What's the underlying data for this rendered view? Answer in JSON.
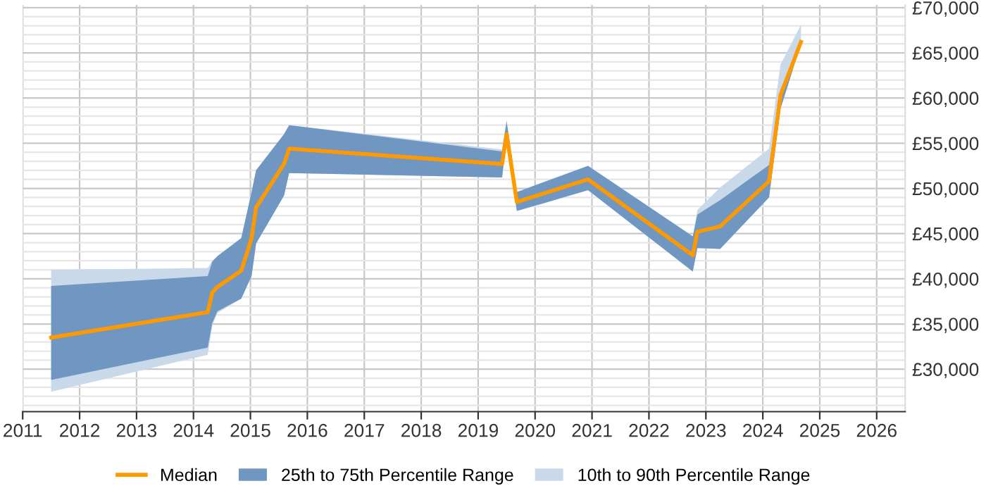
{
  "chart_data": {
    "type": "line",
    "x": [
      2011.5,
      2014.25,
      2014.33,
      2014.42,
      2014.84,
      2015.02,
      2015.1,
      2015.59,
      2015.68,
      2019.42,
      2019.5,
      2019.68,
      2020.93,
      2022.77,
      2022.85,
      2023.25,
      2024.11,
      2024.31,
      2024.67
    ],
    "series": [
      {
        "name": "10th to 90th Percentile Range",
        "type": "area",
        "color": "#c9d9ea",
        "values": [
          null,
          null,
          null,
          null,
          null,
          null,
          null,
          null,
          null,
          null,
          null,
          null,
          null,
          null,
          null,
          null,
          null,
          null,
          null
        ],
        "lower": [
          27500,
          31600,
          34800,
          36200,
          37800,
          40300,
          43900,
          49200,
          51700,
          51200,
          55400,
          47500,
          49800,
          40800,
          43400,
          43300,
          49000,
          58800,
          66000
        ],
        "upper": [
          41000,
          41200,
          42000,
          42500,
          44500,
          49600,
          52000,
          56000,
          57000,
          54300,
          57600,
          49600,
          52500,
          44700,
          47600,
          50100,
          54400,
          63700,
          68100
        ]
      },
      {
        "name": "25th to 75th Percentile Range",
        "type": "area",
        "color": "#7097c1",
        "values": [
          null,
          null,
          null,
          null,
          null,
          null,
          null,
          null,
          null,
          null,
          null,
          null,
          null,
          null,
          null,
          null,
          null,
          null,
          null
        ],
        "lower": [
          28800,
          32400,
          35100,
          36400,
          37800,
          40300,
          43900,
          49200,
          51700,
          51200,
          55400,
          47500,
          49800,
          40800,
          43400,
          43300,
          49000,
          58800,
          66000
        ],
        "upper": [
          39200,
          40300,
          41900,
          42500,
          44500,
          49600,
          52000,
          56000,
          57000,
          54100,
          57400,
          49600,
          52500,
          44700,
          47100,
          48700,
          52600,
          60900,
          66300
        ]
      },
      {
        "name": "Median",
        "color": "#ff9900",
        "values": [
          33500,
          36300,
          38500,
          39100,
          40900,
          44500,
          47900,
          52700,
          54400,
          52700,
          56000,
          48500,
          51000,
          42600,
          45200,
          45800,
          50800,
          60300,
          66200
        ]
      }
    ],
    "xlim": [
      2011,
      2026.5
    ],
    "xticks": [
      2011,
      2012,
      2013,
      2014,
      2015,
      2016,
      2017,
      2018,
      2019,
      2020,
      2021,
      2022,
      2023,
      2024,
      2025,
      2026
    ],
    "ylim": [
      25300,
      70300
    ],
    "yticks": [
      {
        "value": 26000,
        "label": null
      },
      {
        "value": 27000,
        "label": null
      },
      {
        "value": 28000,
        "label": null
      },
      {
        "value": 29000,
        "label": null
      },
      {
        "value": 30000,
        "label": "£30,000"
      },
      {
        "value": 31000,
        "label": null
      },
      {
        "value": 32000,
        "label": null
      },
      {
        "value": 33000,
        "label": null
      },
      {
        "value": 34000,
        "label": null
      },
      {
        "value": 35000,
        "label": "£35,000"
      },
      {
        "value": 36000,
        "label": null
      },
      {
        "value": 37000,
        "label": null
      },
      {
        "value": 38000,
        "label": null
      },
      {
        "value": 39000,
        "label": null
      },
      {
        "value": 40000,
        "label": "£40,000"
      },
      {
        "value": 41000,
        "label": null
      },
      {
        "value": 42000,
        "label": null
      },
      {
        "value": 43000,
        "label": null
      },
      {
        "value": 44000,
        "label": null
      },
      {
        "value": 45000,
        "label": "£45,000"
      },
      {
        "value": 46000,
        "label": null
      },
      {
        "value": 47000,
        "label": null
      },
      {
        "value": 48000,
        "label": null
      },
      {
        "value": 49000,
        "label": null
      },
      {
        "value": 50000,
        "label": "£50,000"
      },
      {
        "value": 51000,
        "label": null
      },
      {
        "value": 52000,
        "label": null
      },
      {
        "value": 53000,
        "label": null
      },
      {
        "value": 54000,
        "label": null
      },
      {
        "value": 55000,
        "label": "£55,000"
      },
      {
        "value": 56000,
        "label": null
      },
      {
        "value": 57000,
        "label": null
      },
      {
        "value": 58000,
        "label": null
      },
      {
        "value": 59000,
        "label": null
      },
      {
        "value": 60000,
        "label": "£60,000"
      },
      {
        "value": 61000,
        "label": null
      },
      {
        "value": 62000,
        "label": null
      },
      {
        "value": 63000,
        "label": null
      },
      {
        "value": 64000,
        "label": null
      },
      {
        "value": 65000,
        "label": "£65,000"
      },
      {
        "value": 66000,
        "label": null
      },
      {
        "value": 67000,
        "label": null
      },
      {
        "value": 68000,
        "label": null
      },
      {
        "value": 69000,
        "label": null
      },
      {
        "value": 70000,
        "label": "£70,000"
      }
    ],
    "grid": true,
    "legend": "bottom"
  }
}
